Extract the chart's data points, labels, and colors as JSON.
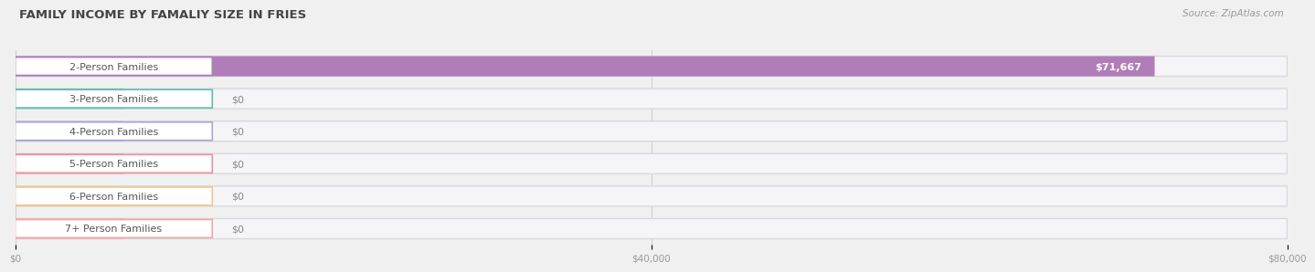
{
  "title": "FAMILY INCOME BY FAMALIY SIZE IN FRIES",
  "source": "Source: ZipAtlas.com",
  "categories": [
    "2-Person Families",
    "3-Person Families",
    "4-Person Families",
    "5-Person Families",
    "6-Person Families",
    "7+ Person Families"
  ],
  "values": [
    71667,
    0,
    0,
    0,
    0,
    0
  ],
  "bar_colors": [
    "#b07db8",
    "#62bdb5",
    "#a9a8d5",
    "#f48fa0",
    "#f5c48a",
    "#f4a5a0"
  ],
  "value_labels": [
    "$71,667",
    "$0",
    "$0",
    "$0",
    "$0",
    "$0"
  ],
  "xlim_max": 80000,
  "xticks": [
    0,
    40000,
    80000
  ],
  "xticklabels": [
    "$0",
    "$40,000",
    "$80,000"
  ],
  "bg_color": "#f0f0f0",
  "bar_bg_color": "#ffffff",
  "bar_row_bg": "#e8e8ec",
  "title_fontsize": 9.5,
  "label_fontsize": 8,
  "value_fontsize": 8
}
